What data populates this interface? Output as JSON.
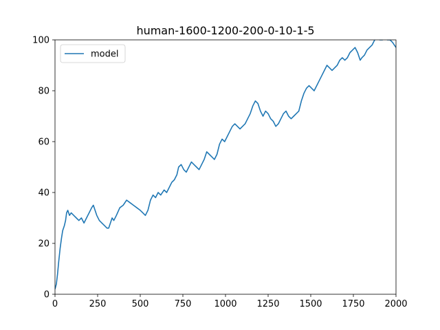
{
  "chart_data": {
    "type": "line",
    "title": "human-1600-1200-200-0-10-1-5",
    "xlabel": "",
    "ylabel": "",
    "xlim": [
      0,
      2000
    ],
    "ylim": [
      0,
      100
    ],
    "xticks": [
      0,
      250,
      500,
      750,
      1000,
      1250,
      1500,
      1750,
      2000
    ],
    "yticks": [
      0,
      20,
      40,
      60,
      80,
      100
    ],
    "grid": false,
    "legend_position": "upper-left",
    "series": [
      {
        "name": "model",
        "color": "#1f77b4",
        "points": [
          [
            0,
            2
          ],
          [
            8,
            4
          ],
          [
            15,
            8
          ],
          [
            22,
            13
          ],
          [
            30,
            18
          ],
          [
            38,
            22
          ],
          [
            45,
            25
          ],
          [
            55,
            27
          ],
          [
            62,
            29
          ],
          [
            68,
            32
          ],
          [
            75,
            33
          ],
          [
            85,
            31
          ],
          [
            95,
            32
          ],
          [
            110,
            31
          ],
          [
            125,
            30
          ],
          [
            140,
            29
          ],
          [
            155,
            30
          ],
          [
            170,
            28
          ],
          [
            185,
            30
          ],
          [
            200,
            32
          ],
          [
            215,
            34
          ],
          [
            225,
            35
          ],
          [
            235,
            33
          ],
          [
            245,
            31
          ],
          [
            260,
            29
          ],
          [
            275,
            28
          ],
          [
            290,
            27
          ],
          [
            305,
            26
          ],
          [
            315,
            26
          ],
          [
            325,
            28
          ],
          [
            335,
            30
          ],
          [
            345,
            29
          ],
          [
            360,
            31
          ],
          [
            380,
            34
          ],
          [
            400,
            35
          ],
          [
            420,
            37
          ],
          [
            440,
            36
          ],
          [
            460,
            35
          ],
          [
            480,
            34
          ],
          [
            500,
            33
          ],
          [
            515,
            32
          ],
          [
            530,
            31
          ],
          [
            545,
            33
          ],
          [
            560,
            37
          ],
          [
            575,
            39
          ],
          [
            590,
            38
          ],
          [
            605,
            40
          ],
          [
            620,
            39
          ],
          [
            640,
            41
          ],
          [
            655,
            40
          ],
          [
            670,
            42
          ],
          [
            685,
            44
          ],
          [
            700,
            45
          ],
          [
            715,
            47
          ],
          [
            725,
            50
          ],
          [
            740,
            51
          ],
          [
            755,
            49
          ],
          [
            770,
            48
          ],
          [
            785,
            50
          ],
          [
            800,
            52
          ],
          [
            815,
            51
          ],
          [
            830,
            50
          ],
          [
            845,
            49
          ],
          [
            860,
            51
          ],
          [
            875,
            53
          ],
          [
            890,
            56
          ],
          [
            905,
            55
          ],
          [
            920,
            54
          ],
          [
            935,
            53
          ],
          [
            950,
            55
          ],
          [
            965,
            59
          ],
          [
            980,
            61
          ],
          [
            995,
            60
          ],
          [
            1010,
            62
          ],
          [
            1025,
            64
          ],
          [
            1040,
            66
          ],
          [
            1055,
            67
          ],
          [
            1070,
            66
          ],
          [
            1085,
            65
          ],
          [
            1100,
            66
          ],
          [
            1115,
            67
          ],
          [
            1130,
            69
          ],
          [
            1145,
            71
          ],
          [
            1160,
            74
          ],
          [
            1175,
            76
          ],
          [
            1190,
            75
          ],
          [
            1205,
            72
          ],
          [
            1220,
            70
          ],
          [
            1235,
            72
          ],
          [
            1250,
            71
          ],
          [
            1265,
            69
          ],
          [
            1280,
            68
          ],
          [
            1295,
            66
          ],
          [
            1310,
            67
          ],
          [
            1325,
            69
          ],
          [
            1340,
            71
          ],
          [
            1355,
            72
          ],
          [
            1370,
            70
          ],
          [
            1385,
            69
          ],
          [
            1400,
            70
          ],
          [
            1415,
            71
          ],
          [
            1430,
            72
          ],
          [
            1445,
            76
          ],
          [
            1460,
            79
          ],
          [
            1475,
            81
          ],
          [
            1490,
            82
          ],
          [
            1505,
            81
          ],
          [
            1520,
            80
          ],
          [
            1535,
            82
          ],
          [
            1550,
            84
          ],
          [
            1565,
            86
          ],
          [
            1580,
            88
          ],
          [
            1595,
            90
          ],
          [
            1610,
            89
          ],
          [
            1625,
            88
          ],
          [
            1640,
            89
          ],
          [
            1655,
            90
          ],
          [
            1670,
            92
          ],
          [
            1685,
            93
          ],
          [
            1700,
            92
          ],
          [
            1715,
            93
          ],
          [
            1730,
            95
          ],
          [
            1745,
            96
          ],
          [
            1760,
            97
          ],
          [
            1775,
            95
          ],
          [
            1790,
            92
          ],
          [
            1800,
            93
          ],
          [
            1815,
            94
          ],
          [
            1830,
            96
          ],
          [
            1845,
            97
          ],
          [
            1860,
            98
          ],
          [
            1875,
            100
          ],
          [
            1890,
            101
          ],
          [
            1905,
            100
          ],
          [
            1920,
            100
          ],
          [
            1935,
            101
          ],
          [
            1950,
            100
          ],
          [
            1965,
            100
          ],
          [
            1980,
            99
          ],
          [
            1990,
            98
          ],
          [
            2000,
            97
          ]
        ]
      }
    ]
  }
}
